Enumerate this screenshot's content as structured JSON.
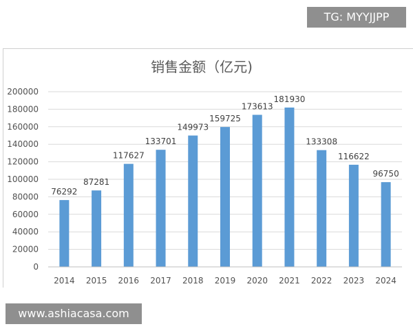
{
  "overlay": {
    "tag": "TG: MYYJJPP",
    "website": "www.ashiacasa.com"
  },
  "chart_data": {
    "type": "bar",
    "title": "销售金额（亿元)",
    "xlabel": "",
    "ylabel": "",
    "categories": [
      "2014",
      "2015",
      "2016",
      "2017",
      "2018",
      "2019",
      "2020",
      "2021",
      "2022",
      "2023",
      "2024"
    ],
    "values": [
      76292,
      87281,
      117627,
      133701,
      149973,
      159725,
      173613,
      181930,
      133308,
      116622,
      96750
    ],
    "ylim": [
      0,
      200000
    ],
    "yticks": [
      "0",
      "20000",
      "40000",
      "60000",
      "80000",
      "100000",
      "120000",
      "140000",
      "160000",
      "180000",
      "200000"
    ],
    "grid": true,
    "legend": "none",
    "bar_color": "#5b9bd5",
    "grid_color": "#d9d9d9"
  }
}
